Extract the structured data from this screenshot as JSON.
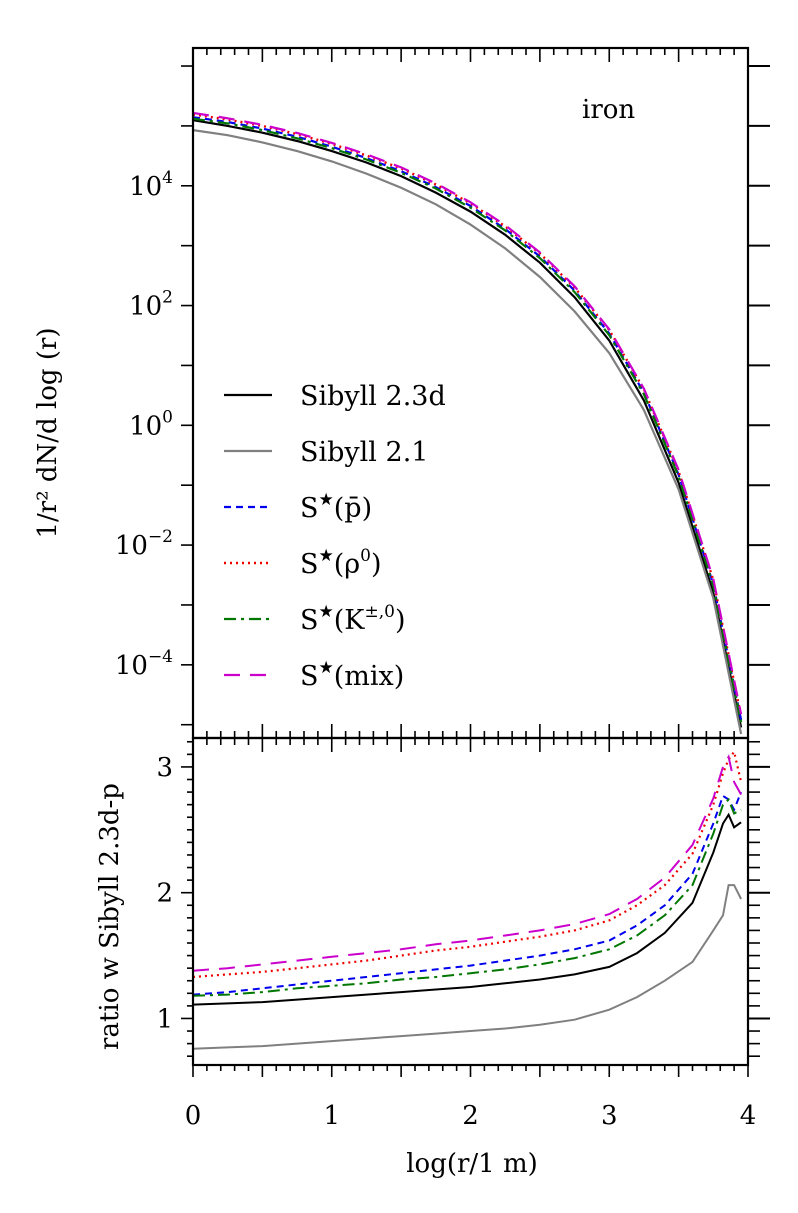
{
  "chart_data": [
    {
      "type": "line",
      "panel": "top",
      "annotation": "iron",
      "ylabel": "1/r² dN/d log (r)",
      "yscale": "log",
      "ylim": [
        6e-06,
        2000000
      ],
      "xlim": [
        0,
        4
      ],
      "yticks": [
        {
          "value": 10000,
          "base": "10",
          "exp": "4"
        },
        {
          "value": 100,
          "base": "10",
          "exp": "2"
        },
        {
          "value": 1,
          "base": "10",
          "exp": "0"
        },
        {
          "value": 0.01,
          "base": "10",
          "exp": "−2"
        },
        {
          "value": 0.0001,
          "base": "10",
          "exp": "−4"
        }
      ],
      "x": [
        0.0,
        0.25,
        0.5,
        0.75,
        1.0,
        1.25,
        1.5,
        1.75,
        2.0,
        2.25,
        2.5,
        2.75,
        3.0,
        3.25,
        3.5,
        3.75,
        3.95
      ],
      "series": [
        {
          "name": "Sibyll 2.3d",
          "label_main": "Sibyll 2.3d",
          "label_arg": "",
          "label_sup": "",
          "color": "#000000",
          "dash": "",
          "width": 2.2,
          "values": [
            125000,
            100000,
            77000,
            56000,
            38000,
            24500,
            14500,
            7700,
            3700,
            1520,
            520,
            138,
            26,
            2.6,
            0.11,
            0.0016,
            9e-06
          ]
        },
        {
          "name": "Sibyll 2.1",
          "label_main": "Sibyll 2.1",
          "label_arg": "",
          "label_sup": "",
          "color": "#808080",
          "dash": "",
          "width": 2.2,
          "values": [
            85000,
            70000,
            53000,
            38000,
            25500,
            16000,
            9300,
            4900,
            2250,
            900,
            300,
            80,
            16,
            1.8,
            0.085,
            0.0013,
            7e-06
          ]
        },
        {
          "name": "S★(p̄)",
          "label_main": "S",
          "label_arg": "(p̄)",
          "label_sup": "",
          "color": "#0000ee",
          "dash": "7,5",
          "width": 2.2,
          "values": [
            140000,
            116000,
            90000,
            66000,
            45000,
            29000,
            17500,
            9500,
            4600,
            1900,
            660,
            178,
            34,
            3.5,
            0.15,
            0.0022,
            1.2e-05
          ]
        },
        {
          "name": "S★(ρ0)",
          "label_main": "S",
          "label_arg": "(ρ",
          "label_sup": "0",
          "color": "#ee0000",
          "dash": "2,4",
          "width": 2.4,
          "values": [
            155000,
            128000,
            100000,
            73000,
            50000,
            32000,
            19500,
            10500,
            5100,
            2100,
            740,
            200,
            39,
            4.0,
            0.17,
            0.0026,
            1.4e-05
          ]
        },
        {
          "name": "S★(K±,0)",
          "label_main": "S",
          "label_arg": "(K",
          "label_sup": "±,0",
          "color": "#007700",
          "dash": "12,5,3,5",
          "width": 2.2,
          "values": [
            132000,
            110000,
            85000,
            62000,
            42500,
            27500,
            16500,
            9000,
            4300,
            1800,
            620,
            168,
            32,
            3.3,
            0.14,
            0.0021,
            1.1e-05
          ]
        },
        {
          "name": "S★(mix)",
          "label_main": "S",
          "label_arg": "(mix)",
          "label_sup": "",
          "color": "#cc00cc",
          "dash": "16,10",
          "width": 2.2,
          "values": [
            165000,
            134000,
            104000,
            76000,
            52000,
            33500,
            20300,
            11000,
            5300,
            2200,
            770,
            210,
            40,
            4.1,
            0.18,
            0.0027,
            1.5e-05
          ]
        }
      ]
    },
    {
      "type": "line",
      "panel": "bottom",
      "ylabel": "ratio w Sibyll 2.3d-p",
      "xlabel": "log(r/1 m)",
      "ylim": [
        0.63,
        3.23
      ],
      "xlim": [
        0,
        4
      ],
      "xticks": [
        0,
        1,
        2,
        3,
        4
      ],
      "yticks": [
        1,
        2,
        3
      ],
      "x": [
        0.0,
        0.25,
        0.5,
        0.75,
        1.0,
        1.25,
        1.5,
        1.75,
        2.0,
        2.25,
        2.5,
        2.75,
        3.0,
        3.2,
        3.4,
        3.6,
        3.75,
        3.82,
        3.86,
        3.9,
        3.95
      ],
      "series": [
        {
          "name": "Sibyll 2.3d",
          "color": "#000000",
          "dash": "",
          "width": 2.0,
          "values": [
            1.11,
            1.12,
            1.13,
            1.15,
            1.17,
            1.19,
            1.21,
            1.23,
            1.25,
            1.28,
            1.31,
            1.35,
            1.41,
            1.52,
            1.68,
            1.92,
            2.32,
            2.55,
            2.62,
            2.52,
            2.56
          ]
        },
        {
          "name": "Sibyll 2.1",
          "color": "#808080",
          "dash": "",
          "width": 2.0,
          "values": [
            0.76,
            0.77,
            0.78,
            0.8,
            0.82,
            0.84,
            0.86,
            0.88,
            0.9,
            0.92,
            0.95,
            0.99,
            1.07,
            1.17,
            1.3,
            1.45,
            1.7,
            1.82,
            2.06,
            2.06,
            1.95
          ]
        },
        {
          "name": "S★(p̄)",
          "color": "#0000ee",
          "dash": "7,5",
          "width": 2.0,
          "values": [
            1.19,
            1.21,
            1.24,
            1.27,
            1.3,
            1.33,
            1.36,
            1.39,
            1.42,
            1.46,
            1.5,
            1.55,
            1.62,
            1.74,
            1.9,
            2.15,
            2.55,
            2.77,
            2.74,
            2.66,
            2.8
          ]
        },
        {
          "name": "S★(ρ0)",
          "color": "#ee0000",
          "dash": "2,4",
          "width": 2.2,
          "values": [
            1.33,
            1.35,
            1.37,
            1.4,
            1.43,
            1.46,
            1.5,
            1.54,
            1.57,
            1.61,
            1.65,
            1.7,
            1.78,
            1.9,
            2.06,
            2.31,
            2.7,
            2.95,
            3.06,
            3.12,
            2.88
          ]
        },
        {
          "name": "S★(K±,0)",
          "color": "#007700",
          "dash": "12,5,3,5",
          "width": 2.0,
          "values": [
            1.18,
            1.19,
            1.21,
            1.24,
            1.26,
            1.28,
            1.31,
            1.33,
            1.36,
            1.39,
            1.43,
            1.48,
            1.55,
            1.66,
            1.82,
            2.06,
            2.47,
            2.7,
            2.74,
            2.63,
            2.66
          ]
        },
        {
          "name": "S★(mix)",
          "color": "#cc00cc",
          "dash": "16,10",
          "width": 2.0,
          "values": [
            1.38,
            1.4,
            1.43,
            1.46,
            1.49,
            1.52,
            1.55,
            1.59,
            1.62,
            1.66,
            1.7,
            1.75,
            1.83,
            1.95,
            2.12,
            2.38,
            2.75,
            3.0,
            3.08,
            2.88,
            2.78
          ]
        }
      ]
    }
  ]
}
